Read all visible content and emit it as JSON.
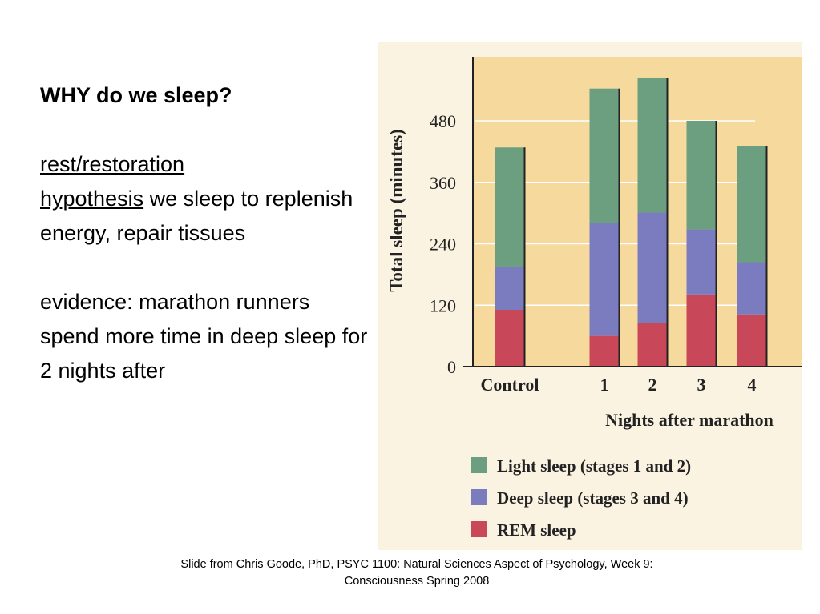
{
  "slide": {
    "title": "WHY do we sleep?",
    "hypothesis_term_1": "rest/restoration",
    "hypothesis_term_2": "hypothesis",
    "hypothesis_text": " we sleep to replenish energy, repair tissues",
    "evidence": "evidence: marathon runners spend more time in deep sleep for 2 nights after",
    "footer_line1": "Slide from Chris Goode, PhD, PSYC 1100: Natural Sciences Aspect of Psychology, Week 9:",
    "footer_line2": "Consciousness Spring 2008"
  },
  "chart_data": {
    "type": "bar",
    "stacked": true,
    "title": "",
    "xlabel": "Nights after marathon",
    "ylabel": "Total sleep (minutes)",
    "ylim": [
      0,
      600
    ],
    "yticks": [
      0,
      120,
      240,
      360,
      480
    ],
    "categories": [
      "Control",
      "1",
      "2",
      "3",
      "4"
    ],
    "series": [
      {
        "name": "REM sleep",
        "color": "#c8485a",
        "values": [
          111,
          60,
          85,
          141,
          102
        ]
      },
      {
        "name": "Deep sleep (stages 3 and 4)",
        "color": "#7b7cc0",
        "values": [
          83,
          221,
          216,
          127,
          102
        ]
      },
      {
        "name": "Light sleep (stages 1 and 2)",
        "color": "#6c9e80",
        "values": [
          234,
          262,
          262,
          212,
          226
        ]
      }
    ],
    "legend": [
      "Light sleep (stages 1 and 2)",
      "Deep sleep (stages 3 and 4)",
      "REM sleep"
    ],
    "legend_colors": [
      "#6c9e80",
      "#7b7cc0",
      "#c8485a"
    ],
    "grid": true,
    "legend_placement": "bottom"
  }
}
